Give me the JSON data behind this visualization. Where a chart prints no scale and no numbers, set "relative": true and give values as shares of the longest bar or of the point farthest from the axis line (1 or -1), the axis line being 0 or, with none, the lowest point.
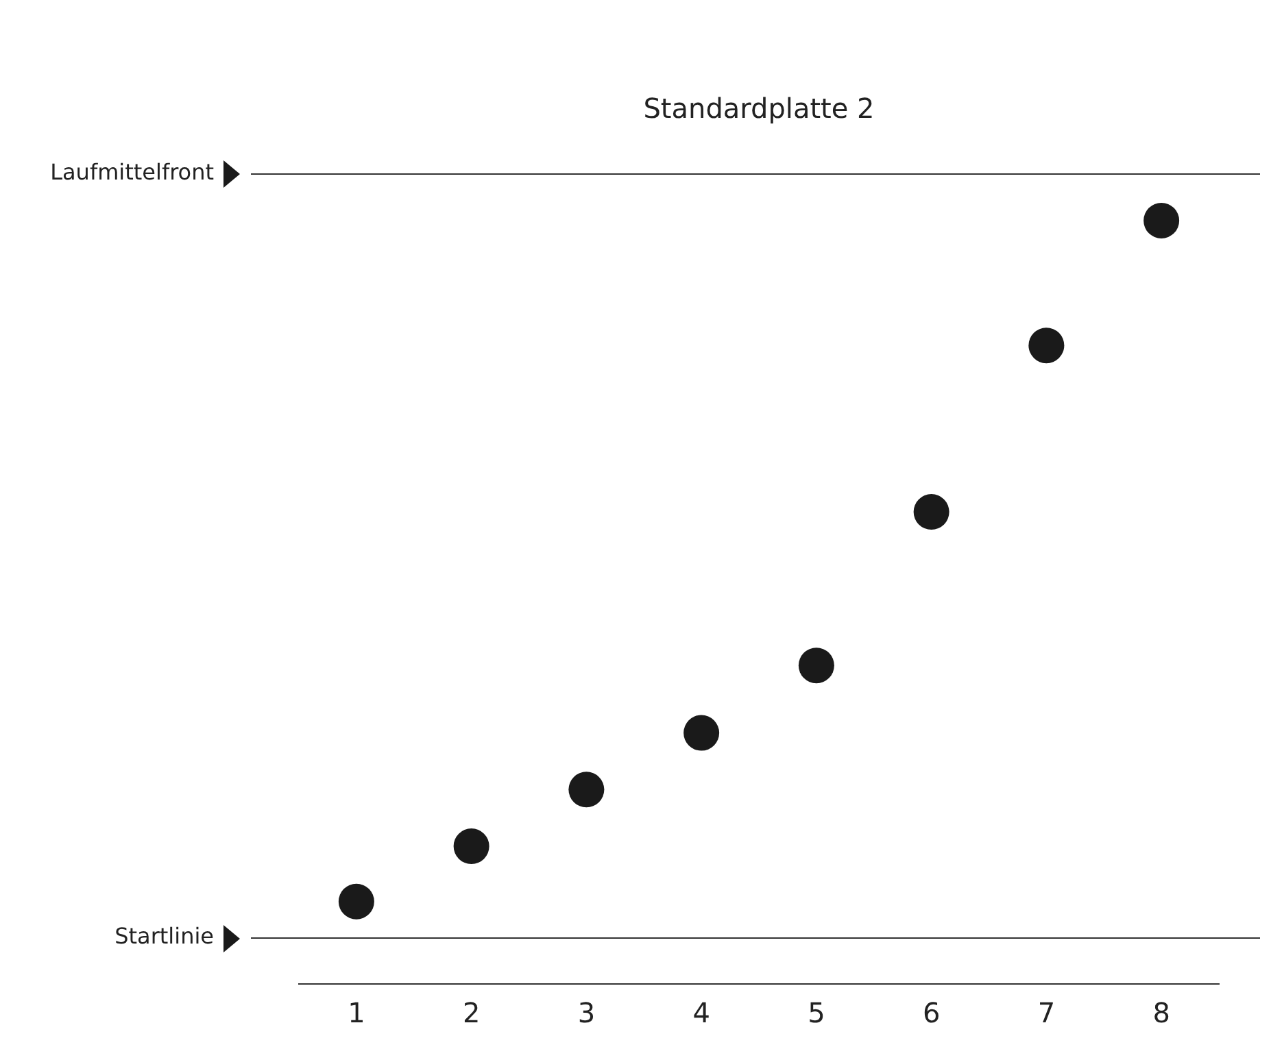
{
  "chart_data": {
    "type": "scatter",
    "title": "Standardplatte 2",
    "relative": true,
    "categories": [
      "1",
      "2",
      "3",
      "4",
      "5",
      "6",
      "7",
      "8"
    ],
    "series": [
      {
        "color": "#1a1a1a",
        "values": [
          0.051,
          0.128,
          0.207,
          0.286,
          0.38,
          0.594,
          0.826,
          1
        ]
      }
    ],
    "ref_lines": [
      {
        "axis": "y",
        "value": 0,
        "label": "Startlinie",
        "color": "#333333"
      },
      {
        "axis": "y",
        "value": 1.065,
        "label": "Laufmittelfront",
        "color": "#333333"
      }
    ],
    "legend": false,
    "marker": "circle"
  }
}
